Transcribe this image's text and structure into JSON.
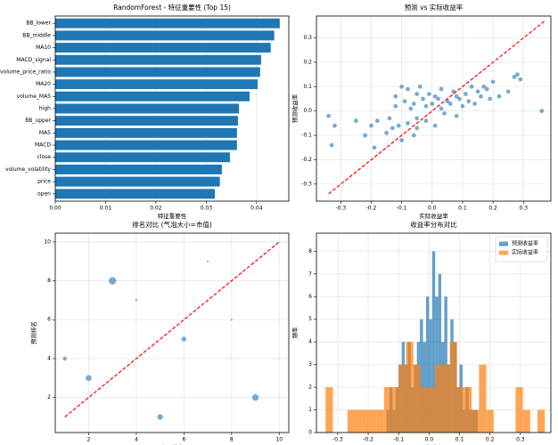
{
  "chart_data": [
    {
      "type": "barh",
      "title": "RandomForest - 特征重要性 (Top 15)",
      "x_label": "特征重要性",
      "categories": [
        "BB_lower",
        "BB_middle",
        "MA10",
        "MACD_signal",
        "volume_price_ratio",
        "MA20",
        "volume_MA5",
        "high",
        "BB_upper",
        "MA5",
        "MACD",
        "close",
        "volume_volatility",
        "price",
        "open"
      ],
      "values": [
        0.0446,
        0.0435,
        0.0428,
        0.0409,
        0.0407,
        0.0402,
        0.0386,
        0.0365,
        0.0363,
        0.0361,
        0.0361,
        0.0347,
        0.0331,
        0.0327,
        0.0317
      ],
      "color": "#1f77b4",
      "xlim": [
        0,
        0.0464
      ],
      "xticks": [
        {
          "value": 0,
          "label": "0.00"
        },
        0.01,
        0.02,
        0.03,
        0.04
      ],
      "grid": true
    },
    {
      "type": "scatter",
      "title": "预测 vs 实际收益率",
      "x_label": "实际收益率",
      "y_label": "预测收益率",
      "x": [
        -0.34,
        -0.33,
        -0.32,
        -0.25,
        -0.22,
        -0.2,
        -0.19,
        -0.18,
        -0.15,
        -0.14,
        -0.13,
        -0.12,
        -0.11,
        -0.1,
        -0.1,
        -0.09,
        -0.08,
        -0.08,
        -0.07,
        -0.06,
        -0.06,
        -0.05,
        -0.05,
        -0.04,
        -0.03,
        -0.02,
        -0.02,
        -0.01,
        0,
        0.01,
        0.01,
        0.02,
        0.03,
        0.03,
        0.04,
        0.05,
        0.06,
        0.07,
        0.08,
        0.08,
        0.09,
        0.1,
        0.11,
        0.12,
        0.13,
        0.14,
        0.15,
        0.16,
        0.17,
        0.18,
        0.19,
        0.2,
        0.22,
        0.25,
        0.27,
        0.28,
        0.29,
        0.36,
        -0.05,
        -0.12
      ],
      "y": [
        -0.02,
        -0.14,
        -0.06,
        -0.04,
        -0.1,
        -0.06,
        -0.15,
        -0.04,
        -0.09,
        -0.03,
        -0.07,
        0.02,
        -0.06,
        0.1,
        -0.12,
        0.04,
        -0.05,
        0.09,
        0.01,
        -0.1,
        0.03,
        0.07,
        -0.03,
        0.1,
        0.05,
        -0.04,
        0.02,
        0.07,
        0.03,
        0.06,
        -0.06,
        0.05,
        0.01,
        0.09,
        -0.01,
        0.04,
        0.03,
        0.08,
        0.06,
        -0.02,
        0.05,
        0.02,
        0.07,
        0.04,
        0.1,
        0.03,
        0.08,
        0.06,
        0.1,
        0.09,
        0.05,
        0.12,
        0.06,
        0.08,
        0.14,
        0.15,
        0.13,
        0.0,
        -0.07,
        0.06
      ],
      "color": "#1f77b4",
      "ref_line": {
        "x": [
          -0.34,
          0.37
        ],
        "y": [
          -0.34,
          0.37
        ],
        "color": "#ff0000"
      },
      "xlim": [
        -0.38,
        0.39
      ],
      "ylim": [
        -0.37,
        0.39
      ],
      "xticks": [
        -0.3,
        -0.2,
        -0.1,
        {
          "value": 0,
          "label": "0.0"
        },
        0.1,
        0.2,
        0.3
      ],
      "yticks": [
        -0.3,
        -0.2,
        -0.1,
        {
          "value": 0,
          "label": "0.0"
        },
        0.1,
        0.2,
        0.3
      ],
      "grid": true
    },
    {
      "type": "scatter",
      "title": "排名对比 (气泡大小=市值)",
      "x_label": "实际排名",
      "y_label": "预测排名",
      "x": [
        1,
        2,
        3,
        4,
        5,
        6,
        7,
        8,
        9
      ],
      "y": [
        4,
        3,
        8,
        7,
        1,
        5,
        9,
        6,
        2
      ],
      "sizes": [
        12,
        28,
        45,
        3,
        25,
        18,
        2,
        2,
        34
      ],
      "color": "#1f77b4",
      "ref_line": {
        "x": [
          1,
          10
        ],
        "y": [
          1,
          10
        ],
        "color": "#ff0000"
      },
      "xlim": [
        0.6,
        10.4
      ],
      "ylim": [
        0.2,
        10.45
      ],
      "xticks": [
        2,
        4,
        6,
        8,
        10
      ],
      "yticks": [
        2,
        4,
        6,
        8,
        10
      ],
      "grid": true
    },
    {
      "type": "histogram",
      "title": "收益率分布对比",
      "x_label": "收益率",
      "y_label": "频率",
      "series": [
        {
          "name": "预测收益率",
          "color": "#1f77b4",
          "bins": [
            -0.14,
            -0.13,
            -0.12,
            -0.11,
            -0.1,
            -0.09,
            -0.08,
            -0.07,
            -0.06,
            -0.05,
            -0.04,
            -0.03,
            -0.02,
            -0.01,
            0,
            0.01,
            0.02,
            0.03,
            0.04,
            0.05,
            0.06,
            0.07,
            0.08,
            0.09,
            0.1,
            0.11,
            0.12,
            0.13,
            0.14,
            0.15,
            0.16
          ],
          "values": [
            1,
            2,
            1,
            2,
            3,
            4,
            3,
            4,
            2,
            3,
            4,
            5,
            4,
            6,
            5,
            8,
            6,
            7,
            4,
            6,
            3,
            5,
            4,
            2,
            3,
            1,
            2,
            1,
            1,
            1
          ]
        },
        {
          "name": "实际收益率",
          "color": "#ff7f0e",
          "bins": [
            -0.34,
            -0.316,
            -0.292,
            -0.268,
            -0.244,
            -0.22,
            -0.196,
            -0.172,
            -0.148,
            -0.124,
            -0.1,
            -0.076,
            -0.052,
            -0.028,
            -0.004,
            0.02,
            0.044,
            0.068,
            0.092,
            0.116,
            0.14,
            0.164,
            0.188,
            0.212,
            0.236,
            0.26,
            0.284,
            0.308,
            0.332,
            0.356,
            0.38
          ],
          "values": [
            2,
            0,
            0,
            1,
            1,
            1,
            1,
            1,
            2,
            2,
            3,
            4,
            3,
            2,
            2,
            3,
            3,
            4,
            2,
            2,
            1,
            3,
            1,
            0,
            0,
            0,
            2,
            1,
            0,
            1
          ]
        }
      ],
      "legend": "upper right",
      "xlim": [
        -0.37,
        0.4
      ],
      "ylim": [
        0,
        8.8
      ],
      "xticks": [
        -0.3,
        -0.2,
        -0.1,
        {
          "value": 0,
          "label": "0.0"
        },
        0.1,
        0.2,
        0.3
      ],
      "yticks": [
        0,
        1,
        2,
        3,
        4,
        5,
        6,
        7,
        8
      ],
      "grid": true
    }
  ]
}
